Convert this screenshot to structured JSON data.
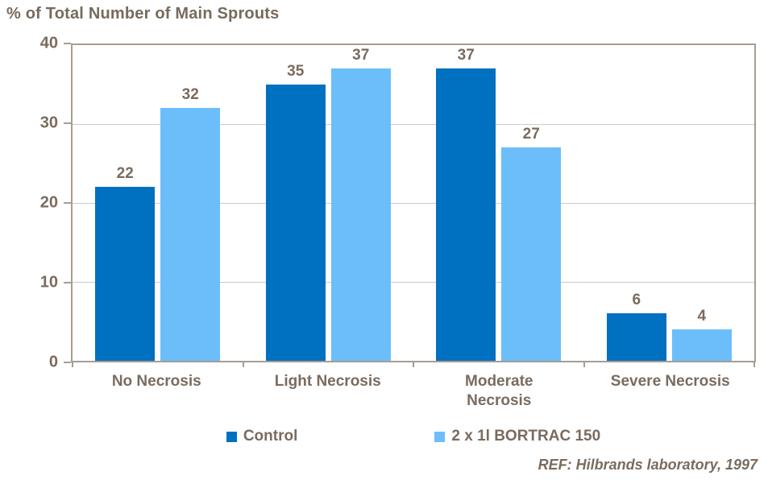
{
  "title": "% of Total Number of Main Sprouts",
  "footer": "REF: Hilbrands laboratory, 1997",
  "colors": {
    "series_control": "#0070C0",
    "series_bortrac": "#6CBEFB",
    "text": "#7A6B5E",
    "axis": "#A79D93",
    "gridline": "#D1C9C1",
    "background": "#FFFFFF"
  },
  "chart_data": {
    "type": "bar",
    "title": "% of Total Number of Main Sprouts",
    "categories": [
      "No Necrosis",
      "Light Necrosis",
      "Moderate Necrosis",
      "Severe Necrosis"
    ],
    "series": [
      {
        "name": "Control",
        "color": "#0070C0",
        "values": [
          22,
          35,
          37,
          6
        ]
      },
      {
        "name": "2 x 1l BORTRAC 150",
        "color": "#6CBEFB",
        "values": [
          32,
          37,
          27,
          4
        ]
      }
    ],
    "xlabel": "",
    "ylabel": "% of Total Number of Main Sprouts",
    "ylim": [
      0,
      40
    ],
    "yticks": [
      0,
      10,
      20,
      30,
      40
    ],
    "grid": true,
    "legend_position": "bottom",
    "annotation": "REF: Hilbrands laboratory, 1997"
  }
}
